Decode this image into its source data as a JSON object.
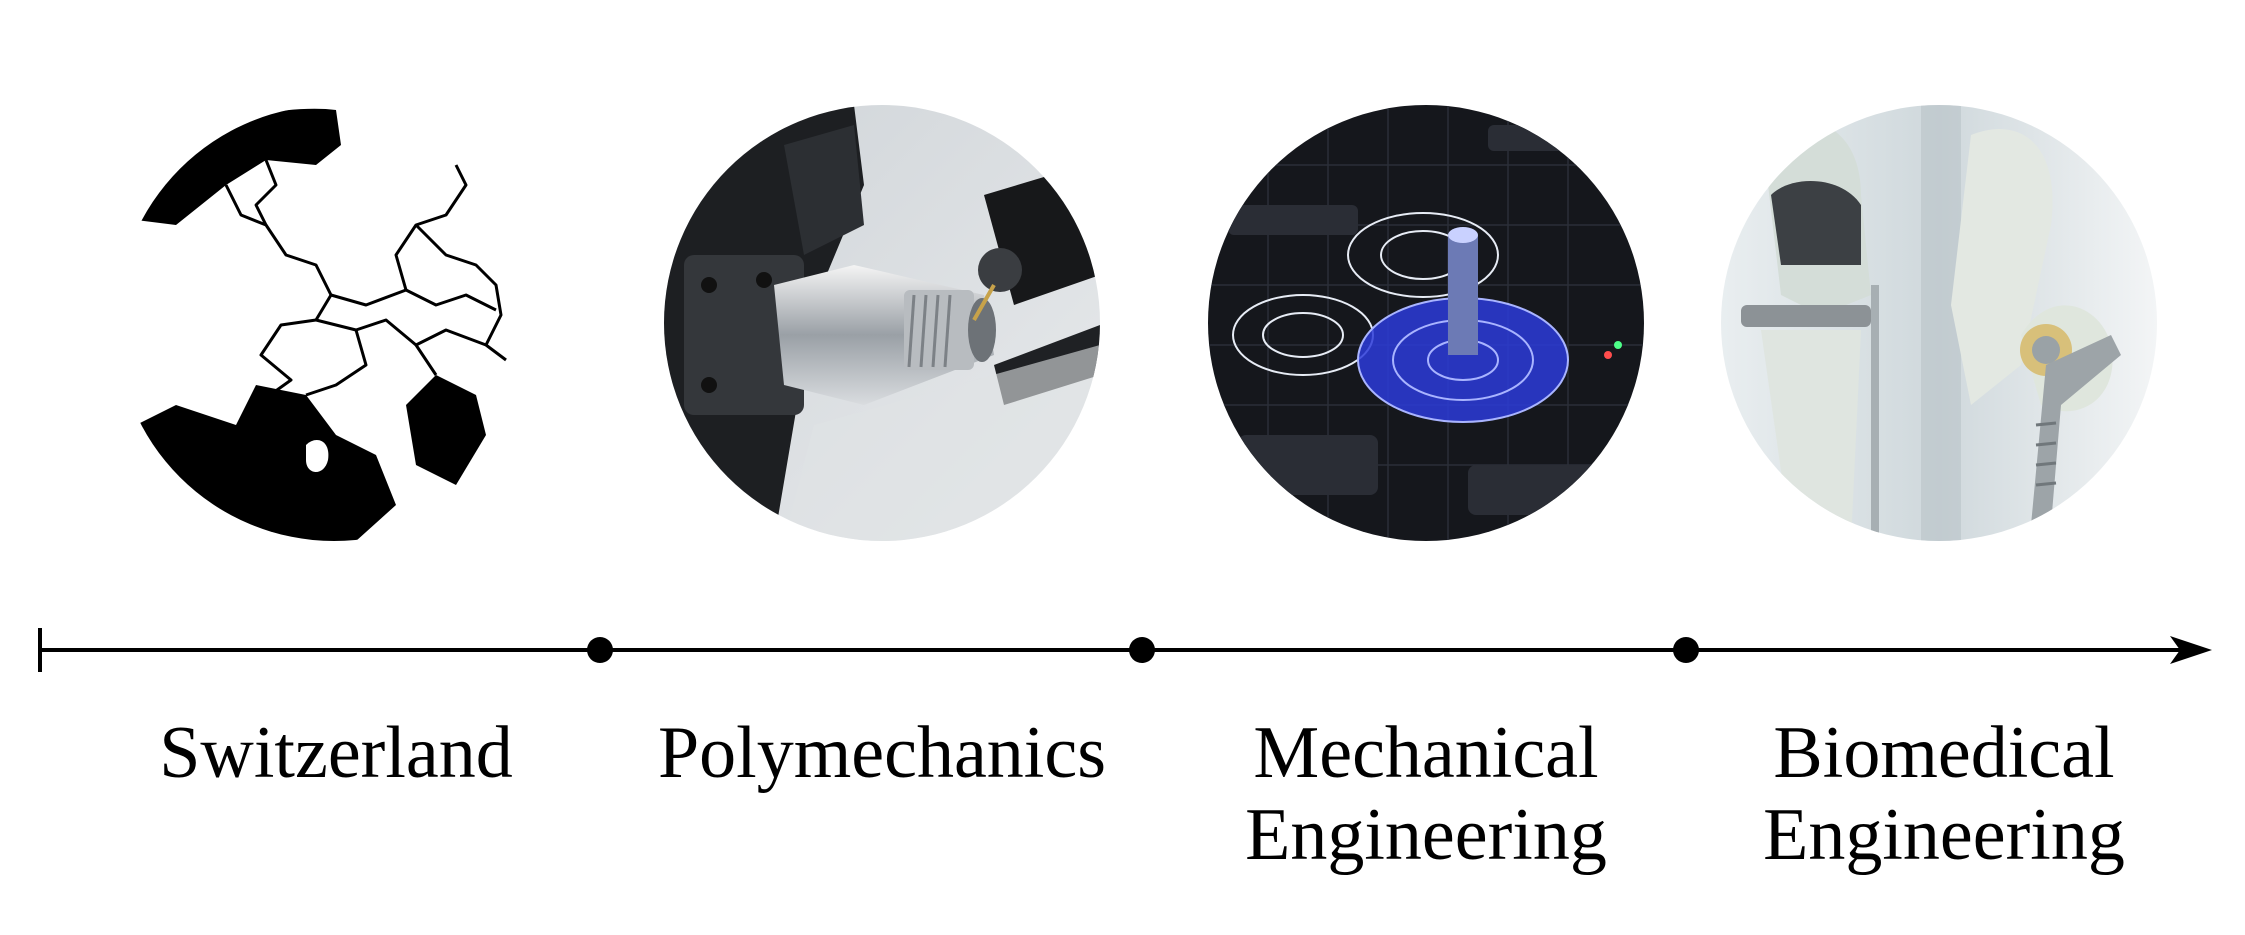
{
  "stages": [
    {
      "label": "Switzerland",
      "image": "map-of-switzerland-region"
    },
    {
      "label": "Polymechanics",
      "image": "cnc-lathe-machining-photo"
    },
    {
      "label": "Mechanical\nEngineering",
      "image": "cad-gear-wireframe-render"
    },
    {
      "label": "Biomedical\nEngineering",
      "image": "joint-implant-models-photo"
    }
  ],
  "colors": {
    "line": "#000000",
    "background": "#ffffff"
  }
}
